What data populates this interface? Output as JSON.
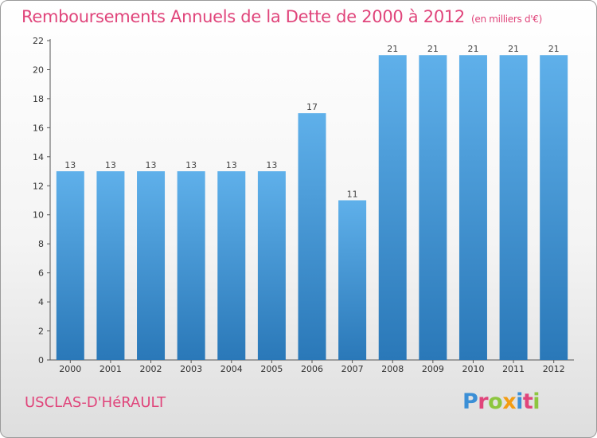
{
  "chart_data": {
    "type": "bar",
    "title": "Remboursements Annuels de la Dette de 2000 à 2012",
    "unit_note": "(en milliers d'€)",
    "categories": [
      "2000",
      "2001",
      "2002",
      "2003",
      "2004",
      "2005",
      "2006",
      "2007",
      "2008",
      "2009",
      "2010",
      "2011",
      "2012"
    ],
    "values": [
      13,
      13,
      13,
      13,
      13,
      13,
      17,
      11,
      21,
      21,
      21,
      21,
      21
    ],
    "ylim": [
      0,
      22
    ],
    "yticks": [
      0,
      2,
      4,
      6,
      8,
      10,
      12,
      14,
      16,
      18,
      20,
      22
    ],
    "grid": false,
    "bar_color_top": "#5fb0ea",
    "bar_color_bottom": "#2a78b8"
  },
  "footer": {
    "commune": "USCLAS-D'HéRAULT",
    "logo": "Proxiti",
    "logo_colors": [
      "#3b8fd6",
      "#e0457b",
      "#8dc63f",
      "#f39c12",
      "#3b8fd6",
      "#e0457b",
      "#8dc63f"
    ]
  }
}
